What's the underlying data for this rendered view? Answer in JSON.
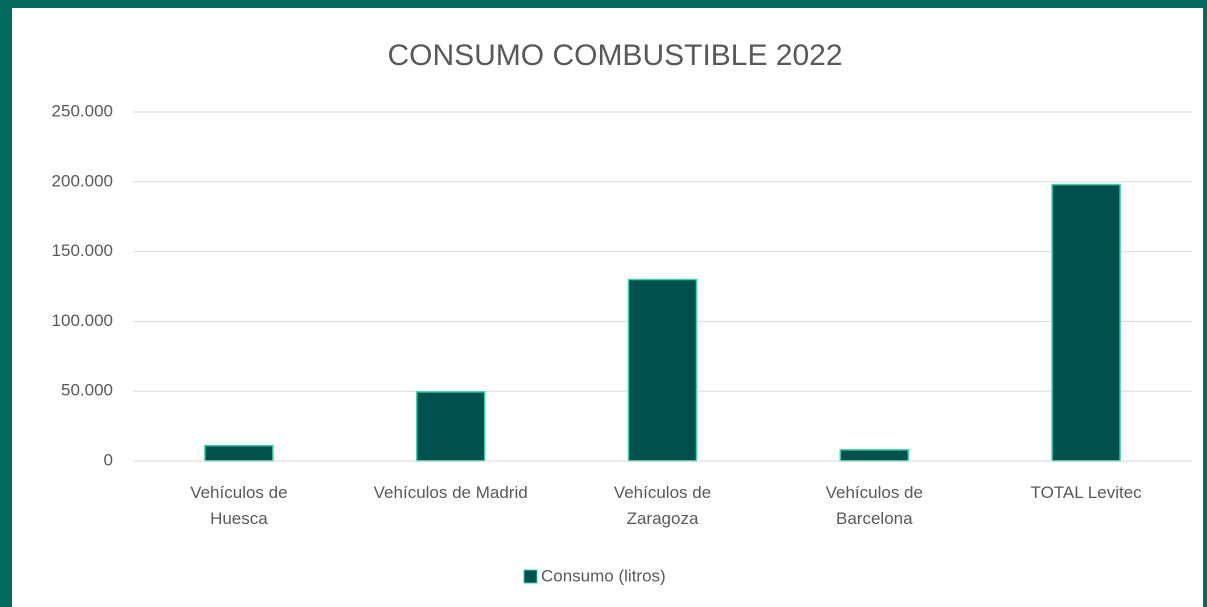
{
  "chart_data": {
    "type": "bar",
    "title": "CONSUMO COMBUSTIBLE 2022",
    "categories": [
      "Vehículos de Huesca",
      "Vehículos de Madrid",
      "Vehículos de Zaragoza",
      "Vehículos de Barcelona",
      "TOTAL Levitec"
    ],
    "series": [
      {
        "name": "Consumo (litros)",
        "color": "#00504e",
        "values": [
          11000,
          49500,
          130000,
          8000,
          198000
        ]
      }
    ],
    "ylim": [
      0,
      250000
    ],
    "yticks": [
      0,
      {
        "value": 50000,
        "label": "50.000"
      },
      {
        "value": 100000,
        "label": "100.000"
      },
      {
        "value": 150000,
        "label": "150.000"
      },
      {
        "value": 200000,
        "label": "200.000"
      },
      {
        "value": 250000,
        "label": "250.000"
      }
    ],
    "grid": true,
    "legend": "bottom"
  }
}
